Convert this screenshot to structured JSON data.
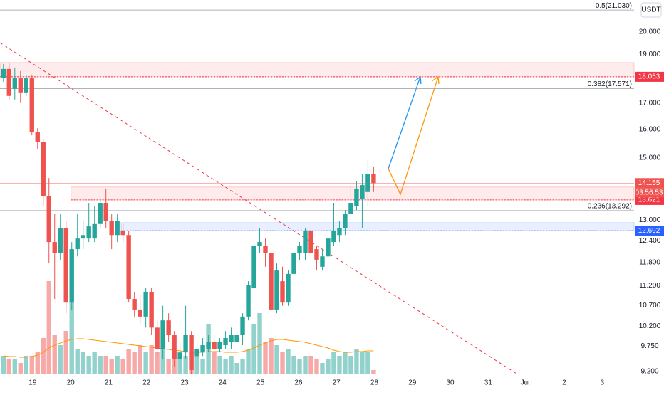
{
  "chart_data": {
    "type": "candlestick",
    "currency": "USDT",
    "log_scale": true,
    "ylim": [
      9.08,
      21.52
    ],
    "yticks": [
      {
        "value": 20,
        "label": "20.000"
      },
      {
        "value": 19,
        "label": "19.000"
      },
      {
        "value": 17,
        "label": "17.000"
      },
      {
        "value": 16,
        "label": "16.000"
      },
      {
        "value": 15,
        "label": "15.000"
      },
      {
        "value": 13,
        "label": "13.000"
      },
      {
        "value": 12.4,
        "label": "12.400"
      },
      {
        "value": 11.8,
        "label": "11.800"
      },
      {
        "value": 11.2,
        "label": "11.200"
      },
      {
        "value": 10.7,
        "label": "10.700"
      },
      {
        "value": 10.2,
        "label": "10.200"
      },
      {
        "value": 9.75,
        "label": "9.750"
      },
      {
        "value": 9.2,
        "label": "9.200"
      }
    ],
    "xlim": [
      18.14,
      34.84
    ],
    "xticks": [
      19,
      20,
      21,
      22,
      23,
      24,
      25,
      26,
      27,
      28,
      29,
      30,
      31,
      {
        "value": 32,
        "label": "Jun"
      },
      {
        "value": 33,
        "label": "2"
      },
      {
        "value": 34,
        "label": "3"
      }
    ],
    "x": [
      18.23,
      18.38,
      18.53,
      18.68,
      18.83,
      18.98,
      19.13,
      19.28,
      19.43,
      19.58,
      19.73,
      19.88,
      20.03,
      20.18,
      20.33,
      20.48,
      20.63,
      20.78,
      20.93,
      21.08,
      21.23,
      21.38,
      21.53,
      21.68,
      21.83,
      21.98,
      22.13,
      22.28,
      22.43,
      22.58,
      22.73,
      22.88,
      23.03,
      23.18,
      23.33,
      23.48,
      23.63,
      23.78,
      23.93,
      24.08,
      24.23,
      24.38,
      24.53,
      24.68,
      24.83,
      24.98,
      25.13,
      25.28,
      25.43,
      25.58,
      25.73,
      25.88,
      26.03,
      26.18,
      26.33,
      26.48,
      26.63,
      26.78,
      26.93,
      27.08,
      27.23,
      27.38,
      27.53,
      27.68,
      27.83,
      27.98
    ],
    "open": [
      17.99,
      18.38,
      17.56,
      17.99,
      17.42,
      17.99,
      15.92,
      15.54,
      13.75,
      12.37,
      12.07,
      12.78,
      10.77,
      12.17,
      12.47,
      12.47,
      12.47,
      12.89,
      13.53,
      12.99,
      12.57,
      12.68,
      12.57,
      10.86,
      10.6,
      10.43,
      11.04,
      10.17,
      9.69,
      10.34,
      10.01,
      9.46,
      9.61,
      10.01,
      9.53,
      9.61,
      9.69,
      9.85,
      9.69,
      9.77,
      9.85,
      9.85,
      10.01,
      10.43,
      11.13,
      12.27,
      12.27,
      12.07,
      10.6,
      11.31,
      10.77,
      11.5,
      12.07,
      12.07,
      12.68,
      12.17,
      11.69,
      11.97,
      12.37,
      12.57,
      12.78,
      13.2,
      13.42,
      13.64,
      13.87,
      14.45
    ],
    "high": [
      18.59,
      18.65,
      18.44,
      18.29,
      18.14,
      18.14,
      16.05,
      15.66,
      14.32,
      13.2,
      13.2,
      12.99,
      12.37,
      13.2,
      12.99,
      13.53,
      13.42,
      13.64,
      13.98,
      13.2,
      13.2,
      12.89,
      12.68,
      11.04,
      10.95,
      11.13,
      11.13,
      10.34,
      10.69,
      10.51,
      10.09,
      9.85,
      10.69,
      10.09,
      9.85,
      9.93,
      10.01,
      10.01,
      9.93,
      10.09,
      10.17,
      10.09,
      10.51,
      11.31,
      12.37,
      12.78,
      12.47,
      12.17,
      11.78,
      11.69,
      11.59,
      12.37,
      12.37,
      12.78,
      12.78,
      12.27,
      12.17,
      12.57,
      13.53,
      12.99,
      13.31,
      14.09,
      14.21,
      14.45,
      14.93,
      14.69
    ],
    "low": [
      17.85,
      17.14,
      17.14,
      17.0,
      17.28,
      15.79,
      15.29,
      13.42,
      11.78,
      10.86,
      11.88,
      10.51,
      10.6,
      11.97,
      12.17,
      12.37,
      12.37,
      12.78,
      12.78,
      12.17,
      12.37,
      12.37,
      10.77,
      10.43,
      10.26,
      10.17,
      10.01,
      9.53,
      9.46,
      9.85,
      9.3,
      9.3,
      9.46,
      9.15,
      9.46,
      9.53,
      9.61,
      9.53,
      9.61,
      9.69,
      9.69,
      9.77,
      9.77,
      10.34,
      10.86,
      12.07,
      11.69,
      10.51,
      10.51,
      10.69,
      10.69,
      11.4,
      11.88,
      11.88,
      11.69,
      11.59,
      11.59,
      11.88,
      12.27,
      12.37,
      12.57,
      12.99,
      13.31,
      12.78,
      13.42,
      13.87
    ],
    "close": [
      18.38,
      17.28,
      17.99,
      17.42,
      17.99,
      15.92,
      15.54,
      13.75,
      12.37,
      12.07,
      12.78,
      10.77,
      12.17,
      12.47,
      12.57,
      12.82,
      12.89,
      13.53,
      12.99,
      12.57,
      12.99,
      12.57,
      10.86,
      10.6,
      10.43,
      11.04,
      10.17,
      9.69,
      10.34,
      10.01,
      9.46,
      9.61,
      10.01,
      9.23,
      9.69,
      9.77,
      9.85,
      9.69,
      9.85,
      9.93,
      10.01,
      10.01,
      10.43,
      11.22,
      12.27,
      12.37,
      12.07,
      10.6,
      11.59,
      10.77,
      11.5,
      12.07,
      12.27,
      12.68,
      12.07,
      11.88,
      11.97,
      12.47,
      12.68,
      12.78,
      13.2,
      13.53,
      13.98,
      14.09,
      14.45,
      14.15
    ],
    "up_color": "#26a69a",
    "down_color": "#ef5350",
    "volume": [
      25,
      20,
      20,
      15,
      25,
      25,
      30,
      50,
      130,
      55,
      40,
      60,
      105,
      35,
      30,
      25,
      30,
      25,
      25,
      20,
      25,
      20,
      35,
      30,
      40,
      30,
      40,
      30,
      35,
      20,
      30,
      20,
      25,
      30,
      25,
      20,
      70,
      30,
      25,
      20,
      25,
      15,
      20,
      35,
      70,
      85,
      45,
      50,
      40,
      30,
      35,
      25,
      20,
      25,
      25,
      20,
      15,
      20,
      30,
      25,
      30,
      25,
      35,
      30,
      30,
      5
    ],
    "volume_ma": [
      25,
      24,
      24,
      23,
      23,
      24,
      26,
      30,
      36,
      40,
      43,
      46,
      48,
      49,
      49,
      48,
      47,
      46,
      45,
      44,
      43,
      42,
      41,
      40,
      39,
      38,
      37,
      36,
      35,
      34,
      33,
      32,
      31,
      30,
      30,
      30,
      31,
      31,
      31,
      30,
      30,
      30,
      31,
      33,
      36,
      40,
      43,
      46,
      48,
      48,
      47,
      46,
      45,
      44,
      42,
      40,
      38,
      36,
      33,
      31,
      30,
      30,
      31,
      31,
      32,
      32
    ],
    "volume_ma_color": "#ff9800",
    "fib_levels": [
      {
        "value": 21.03,
        "label": "0.5(21.030)"
      },
      {
        "value": 17.571,
        "label": "0.382(17.571)"
      },
      {
        "value": 13.292,
        "label": "0.236(13.292)"
      }
    ],
    "zones": [
      {
        "top": 18.65,
        "bottom": 18.053,
        "x_start": 18.14,
        "color": "#f23645"
      },
      {
        "top": 14.03,
        "bottom": 13.621,
        "x_start": 20.01,
        "color": "#f23645"
      },
      {
        "top": 12.93,
        "bottom": 12.692,
        "x_start": 21.33,
        "color": "#2962ff"
      }
    ],
    "last_price": 14.155,
    "countdown": "03:56:53"
  }
}
